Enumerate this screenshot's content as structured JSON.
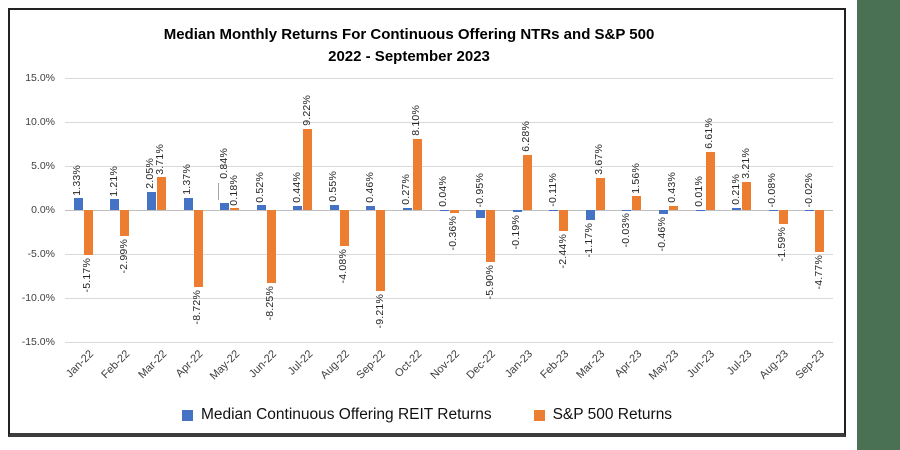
{
  "chart_data": {
    "type": "bar",
    "title": "Median Monthly Returns For Continuous Offering NTRs and S&P 500",
    "subtitle": "2022 - September 2023",
    "categories": [
      "Jan-22",
      "Feb-22",
      "Mar-22",
      "Apr-22",
      "May-22",
      "Jun-22",
      "Jul-22",
      "Aug-22",
      "Sep-22",
      "Oct-22",
      "Nov-22",
      "Dec-22",
      "Jan-23",
      "Feb-23",
      "Mar-23",
      "Apr-23",
      "May-23",
      "Jun-23",
      "Jul-23",
      "Aug-23",
      "Sep-23"
    ],
    "series": [
      {
        "name": "Median Continuous Offering REIT Returns",
        "color": "#4472C4",
        "values": [
          1.33,
          1.21,
          2.05,
          1.37,
          0.84,
          0.52,
          0.44,
          0.55,
          0.46,
          0.27,
          0.04,
          -0.95,
          -0.19,
          -0.11,
          -1.17,
          -0.03,
          -0.46,
          0.01,
          0.21,
          -0.08,
          -0.02
        ]
      },
      {
        "name": "S&P 500 Returns",
        "color": "#ED7D31",
        "values": [
          -5.17,
          -2.99,
          3.71,
          -8.72,
          0.18,
          -8.25,
          9.22,
          -4.08,
          -9.21,
          8.1,
          -0.36,
          -5.9,
          6.28,
          -2.44,
          3.67,
          1.56,
          0.43,
          6.61,
          3.21,
          -1.59,
          -4.77
        ]
      }
    ],
    "ylim": [
      -15,
      15
    ],
    "y_tick_step": 5,
    "y_tick_labels": [
      "15.0%",
      "10.0%",
      "5.0%",
      "0.0%",
      "-5.0%",
      "-10.0%",
      "-15.0%"
    ],
    "grid": "horizontal",
    "legend_position": "bottom",
    "data_labels": "rotated-90-percent-two-decimals",
    "annotations": {
      "leader_line": {
        "category": "May-22",
        "series": "Median Continuous Offering REIT Returns"
      }
    },
    "frame": {
      "border_color": "#222222",
      "right_band_color": "#4A7154",
      "gridline_color": "#D9D9D9"
    }
  }
}
